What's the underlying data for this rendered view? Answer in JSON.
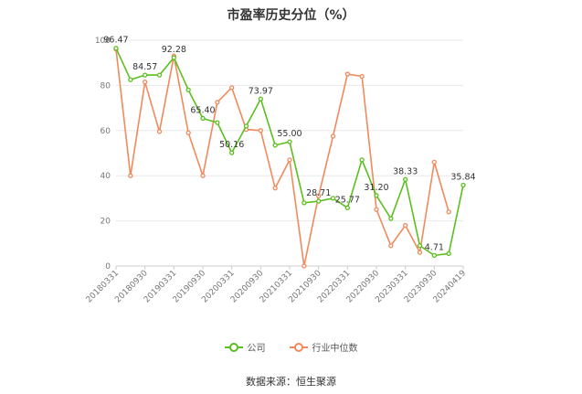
{
  "title": "市盈率历史分位（%）",
  "source": "数据来源：恒生聚源",
  "colors": {
    "company": "#5cbf1f",
    "industry": "#f08a5d",
    "grid": "#e8e8e8",
    "axis": "#cccccc"
  },
  "chart_data": {
    "type": "line",
    "title": "市盈率历史分位（%）",
    "ylim": [
      0,
      100
    ],
    "yticks": [
      0,
      20,
      40,
      60,
      80,
      100
    ],
    "grid": true,
    "legend_position": "bottom",
    "xtick_labels": [
      "20180331",
      "20180930",
      "20190331",
      "20190930",
      "20200331",
      "20200930",
      "20210331",
      "20210930",
      "20220331",
      "20220930",
      "20230331",
      "20230930",
      "20240419"
    ],
    "series": [
      {
        "name": "公司",
        "color": "#5cbf1f",
        "values": [
          96.47,
          82.5,
          84.57,
          84.57,
          92.28,
          78.0,
          65.4,
          63.5,
          50.16,
          62.0,
          73.97,
          53.5,
          55.0,
          28.0,
          28.71,
          30.0,
          25.77,
          47.0,
          31.2,
          21.0,
          38.33,
          9.0,
          4.71,
          5.5,
          35.84
        ]
      },
      {
        "name": "行业中位数",
        "color": "#f08a5d",
        "values": [
          96.0,
          40.0,
          81.5,
          59.5,
          93.0,
          59.0,
          40.0,
          72.5,
          79.0,
          60.5,
          60.0,
          34.5,
          47.0,
          0.0,
          31.0,
          57.5,
          85.0,
          84.0,
          25.0,
          9.0,
          18.0,
          6.0,
          46.0,
          24.0
        ]
      }
    ],
    "data_labels": [
      {
        "series": 0,
        "index": 0,
        "text": "96.47"
      },
      {
        "series": 0,
        "index": 2,
        "text": "84.57"
      },
      {
        "series": 0,
        "index": 4,
        "text": "92.28"
      },
      {
        "series": 0,
        "index": 6,
        "text": "65.40"
      },
      {
        "series": 0,
        "index": 8,
        "text": "50.16"
      },
      {
        "series": 0,
        "index": 10,
        "text": "73.97"
      },
      {
        "series": 0,
        "index": 12,
        "text": "55.00"
      },
      {
        "series": 0,
        "index": 14,
        "text": "28.71"
      },
      {
        "series": 0,
        "index": 16,
        "text": "25.77"
      },
      {
        "series": 0,
        "index": 18,
        "text": "31.20"
      },
      {
        "series": 0,
        "index": 20,
        "text": "38.33"
      },
      {
        "series": 0,
        "index": 22,
        "text": "4.71"
      },
      {
        "series": 0,
        "index": 24,
        "text": "35.84"
      }
    ]
  },
  "legend": [
    {
      "label": "公司",
      "color": "#5cbf1f"
    },
    {
      "label": "行业中位数",
      "color": "#f08a5d"
    }
  ]
}
